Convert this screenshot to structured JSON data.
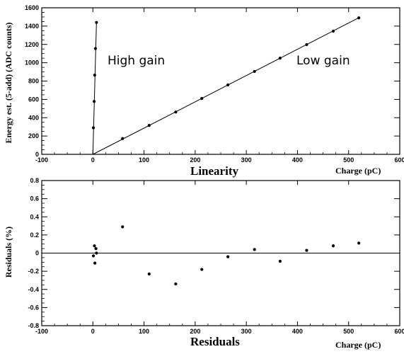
{
  "chart_data": [
    {
      "type": "scatter",
      "subtitle": "Linearity",
      "xlabel": "Charge (pC)",
      "ylabel": "Energy est. (5-add) (ADC counts)",
      "xlim": [
        -100,
        600
      ],
      "ylim": [
        0,
        1600
      ],
      "x_ticks": [
        "-100",
        "0",
        "100",
        "200",
        "300",
        "400",
        "500",
        "600"
      ],
      "y_ticks": [
        "0",
        "200",
        "400",
        "600",
        "800",
        "1000",
        "1200",
        "1400",
        "1600"
      ],
      "grid": false,
      "annotations": [
        "High gain",
        "Low gain"
      ],
      "series": [
        {
          "name": "High gain",
          "points": [
            [
              1.0,
              290
            ],
            [
              2.5,
              578
            ],
            [
              3.5,
              865
            ],
            [
              5.0,
              1155
            ],
            [
              7.0,
              1440
            ]
          ],
          "fit_line": [
            [
              0,
              0
            ],
            [
              7.0,
              1440
            ]
          ]
        },
        {
          "name": "Low gain",
          "points": [
            [
              58,
              172
            ],
            [
              110,
              316
            ],
            [
              162,
              462
            ],
            [
              213,
              610
            ],
            [
              264,
              758
            ],
            [
              316,
              905
            ],
            [
              366,
              1050
            ],
            [
              418,
              1198
            ],
            [
              470,
              1345
            ],
            [
              520,
              1490
            ]
          ],
          "fit_line": [
            [
              0,
              0
            ],
            [
              522,
              1497
            ]
          ]
        }
      ]
    },
    {
      "type": "scatter",
      "subtitle": "Residuals",
      "xlabel": "Charge (pC)",
      "ylabel": "Residuals (%)",
      "xlim": [
        -100,
        600
      ],
      "ylim": [
        -0.8,
        0.8
      ],
      "x_ticks": [
        "-100",
        "0",
        "100",
        "200",
        "300",
        "400",
        "500",
        "600"
      ],
      "y_ticks": [
        "-0.8",
        "-0.6",
        "-0.4",
        "-0.2",
        "0",
        "0.2",
        "0.4",
        "0.6",
        "0.8"
      ],
      "grid": false,
      "reference_line": 0,
      "points": [
        [
          1,
          -0.03
        ],
        [
          3,
          0.08
        ],
        [
          4,
          -0.11
        ],
        [
          6,
          0.05
        ],
        [
          7,
          0.0
        ],
        [
          58,
          0.29
        ],
        [
          110,
          -0.23
        ],
        [
          162,
          -0.34
        ],
        [
          213,
          -0.18
        ],
        [
          264,
          -0.04
        ],
        [
          316,
          0.04
        ],
        [
          366,
          -0.09
        ],
        [
          418,
          0.03
        ],
        [
          470,
          0.08
        ],
        [
          520,
          0.11
        ]
      ]
    }
  ]
}
